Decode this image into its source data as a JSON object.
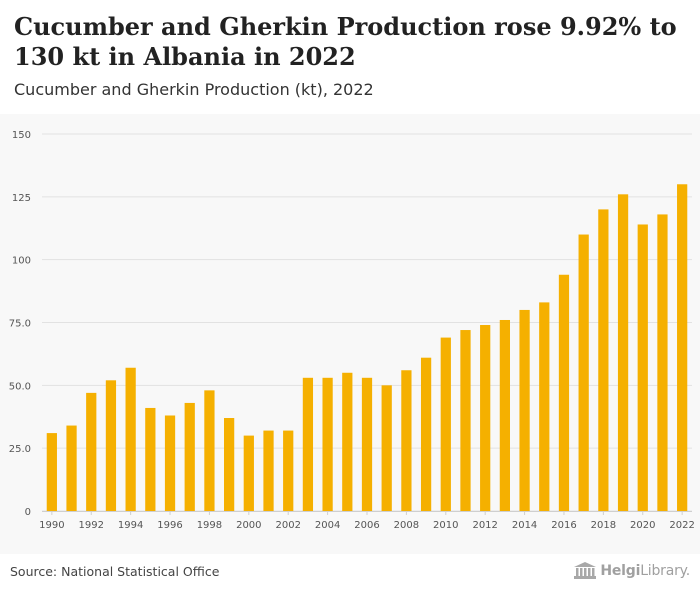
{
  "header": {
    "title": "Cucumber and Gherkin Production rose 9.92% to 130 kt in Albania in 2022",
    "subtitle": "Cucumber and Gherkin Production (kt), 2022"
  },
  "footer": {
    "source": "Source: National Statistical Office",
    "brand_bold": "Helgi",
    "brand_light": "Library."
  },
  "colors": {
    "bar": "#f5b000",
    "grid": "#e2e2e2",
    "axis_text": "#555555"
  },
  "chart_data": {
    "type": "bar",
    "title": "Cucumber and Gherkin Production (kt), 2022",
    "xlabel": "",
    "ylabel": "",
    "ylim": [
      0,
      150
    ],
    "yticks": [
      "0",
      "25.0",
      "50.0",
      "75.0",
      "100",
      "125",
      "150"
    ],
    "ytick_values": [
      0,
      25,
      50,
      75,
      100,
      125,
      150
    ],
    "categories": [
      "1990",
      "1991",
      "1992",
      "1993",
      "1994",
      "1995",
      "1996",
      "1997",
      "1998",
      "1999",
      "2000",
      "2001",
      "2002",
      "2003",
      "2004",
      "2005",
      "2006",
      "2007",
      "2008",
      "2009",
      "2010",
      "2011",
      "2012",
      "2013",
      "2014",
      "2015",
      "2016",
      "2017",
      "2018",
      "2019",
      "2020",
      "2021",
      "2022"
    ],
    "xtick_labels": [
      "1990",
      "",
      "1992",
      "",
      "1994",
      "",
      "1996",
      "",
      "1998",
      "",
      "2000",
      "",
      "2002",
      "",
      "2004",
      "",
      "2006",
      "",
      "2008",
      "",
      "2010",
      "",
      "2012",
      "",
      "2014",
      "",
      "2016",
      "",
      "2018",
      "",
      "2020",
      "",
      "2022"
    ],
    "values": [
      31,
      34,
      47,
      52,
      57,
      41,
      38,
      43,
      48,
      37,
      30,
      32,
      32,
      53,
      53,
      55,
      53,
      50,
      56,
      61,
      69,
      72,
      74,
      76,
      80,
      83,
      94,
      110,
      120,
      126,
      114,
      118,
      130
    ],
    "grid": true
  }
}
